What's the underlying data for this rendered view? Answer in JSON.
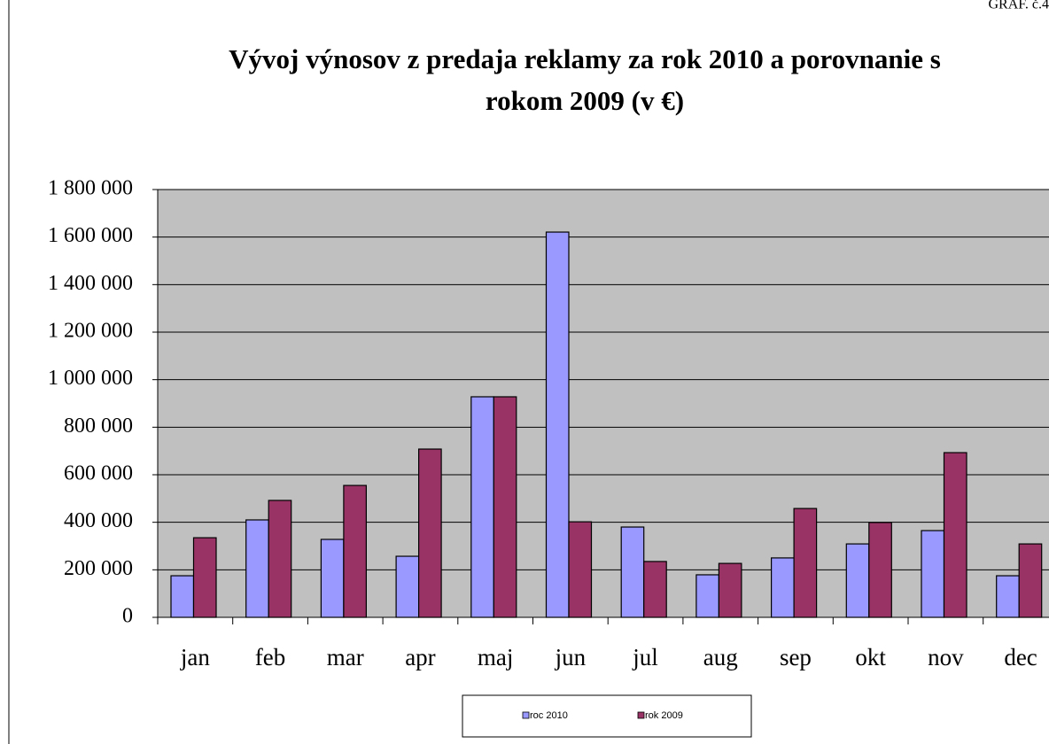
{
  "chart_data": {
    "type": "bar",
    "header": "GRAF. č.4",
    "title": [
      "Vývoj výnosov z predaja reklamy za rok 2010 a porovnanie s",
      "rokom 2009 (v €)"
    ],
    "categories": [
      "jan",
      "feb",
      "mar",
      "apr",
      "maj",
      "jun",
      "jul",
      "aug",
      "sep",
      "okt",
      "nov",
      "dec"
    ],
    "series": [
      {
        "name": "roc 2010",
        "color": "#9999ff",
        "values": [
          175000,
          410000,
          328000,
          257000,
          928000,
          1621000,
          380000,
          179000,
          250000,
          309000,
          365000,
          175000
        ]
      },
      {
        "name": "rok 2009",
        "color": "#993366",
        "values": [
          335000,
          492000,
          555000,
          708000,
          928000,
          402000,
          235000,
          227000,
          458000,
          399000,
          693000,
          309000
        ]
      }
    ],
    "ylim": [
      0,
      1800000
    ],
    "yticks": [
      0,
      {
        "value": 200000,
        "label": "200 000"
      },
      {
        "value": 400000,
        "label": "400 000"
      },
      {
        "value": 600000,
        "label": "600 000"
      },
      {
        "value": 800000,
        "label": "800 000"
      },
      {
        "value": 1000000,
        "label": "1 000 000"
      },
      {
        "value": 1200000,
        "label": "1 200 000"
      },
      {
        "value": 1400000,
        "label": "1 400 000"
      },
      {
        "value": 1600000,
        "label": "1 600 000"
      },
      {
        "value": 1800000,
        "label": "1 800 000"
      }
    ],
    "grid": true,
    "plot_background": "#c0c0c0",
    "legend": "bottom"
  }
}
